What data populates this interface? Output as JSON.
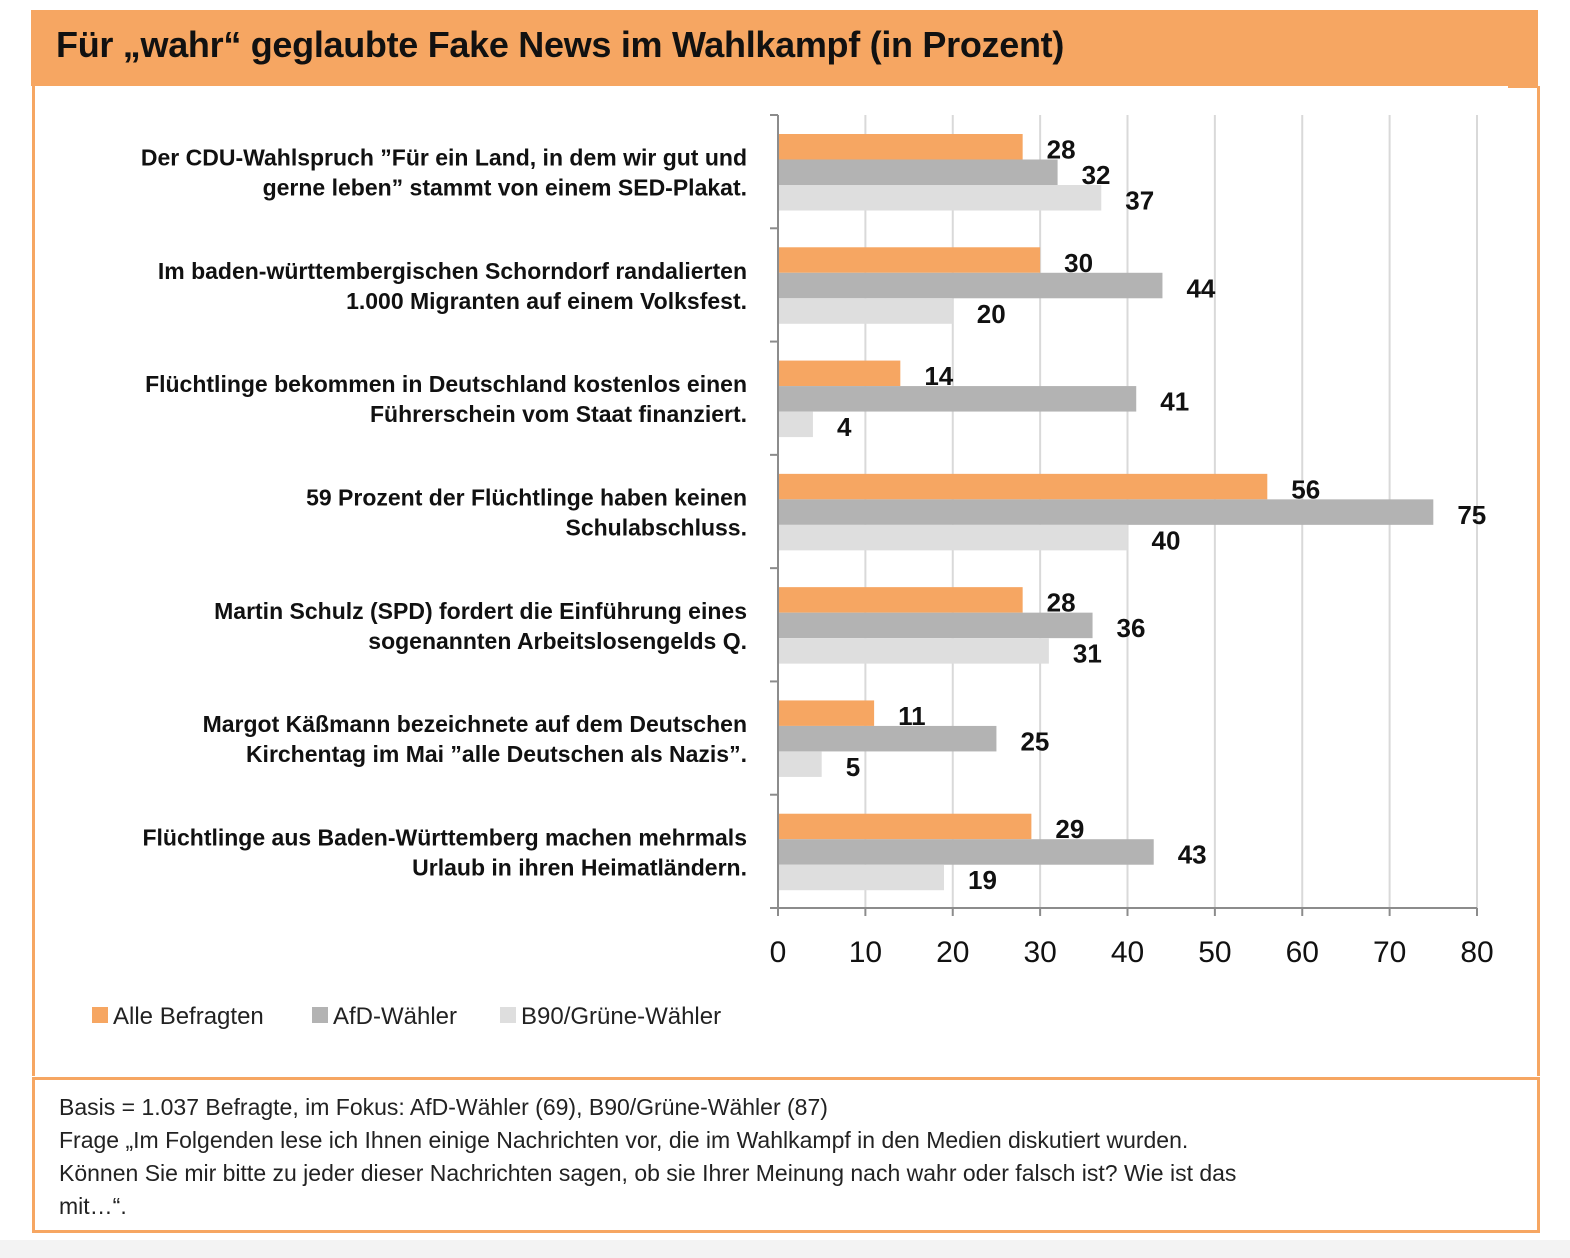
{
  "header": {
    "title": "Für „wahr“ geglaubte Fake News im Wahlkampf (in Prozent)"
  },
  "colors": {
    "accent": "#F6A662",
    "series": [
      "#F6A662",
      "#B3B3B3",
      "#DEDEDE"
    ],
    "grid": "#D9D9D9",
    "axis": "#8C8C8C"
  },
  "chart_data": {
    "type": "bar",
    "orientation": "horizontal",
    "title": "Für „wahr“ geglaubte Fake News im Wahlkampf (in Prozent)",
    "xlabel": "",
    "ylabel": "",
    "xlim": [
      0,
      80
    ],
    "xticks": [
      0,
      10,
      20,
      30,
      40,
      50,
      60,
      70,
      80
    ],
    "grid": true,
    "legend_position": "bottom-left",
    "categories": [
      [
        "Der CDU-Wahlspruch ”Für ein Land, in dem wir gut und",
        "gerne leben” stammt von einem SED-Plakat."
      ],
      [
        "Im baden-württembergischen Schorndorf randalierten",
        "1.000 Migranten auf einem Volksfest."
      ],
      [
        "Flüchtlinge bekommen in Deutschland kostenlos einen",
        "Führerschein vom Staat finanziert."
      ],
      [
        "59 Prozent der Flüchtlinge haben keinen",
        "Schulabschluss."
      ],
      [
        "Martin Schulz (SPD) fordert die Einführung eines",
        "sogenannten Arbeitslosengelds Q."
      ],
      [
        "Margot Käßmann bezeichnete auf dem Deutschen",
        "Kirchentag im Mai ”alle Deutschen als Nazis”."
      ],
      [
        "Flüchtlinge aus Baden-Württemberg machen mehrmals",
        "Urlaub in ihren Heimatländern."
      ]
    ],
    "series": [
      {
        "name": "Alle Befragten",
        "values": [
          28,
          30,
          14,
          56,
          28,
          11,
          29
        ]
      },
      {
        "name": "AfD-Wähler",
        "values": [
          32,
          44,
          41,
          75,
          36,
          25,
          43
        ]
      },
      {
        "name": "B90/Grüne-Wähler",
        "values": [
          37,
          20,
          4,
          40,
          31,
          5,
          19
        ]
      }
    ]
  },
  "notes": {
    "lines": [
      "Basis = 1.037 Befragte, im Fokus: AfD-Wähler (69), B90/Grüne-Wähler (87)",
      "Frage „Im Folgenden lese ich Ihnen einige Nachrichten vor, die im Wahlkampf in den Medien diskutiert wurden.",
      "Können Sie mir bitte zu jeder dieser Nachrichten sagen, ob sie Ihrer Meinung nach wahr oder falsch ist? Wie ist das",
      "mit…“."
    ]
  }
}
